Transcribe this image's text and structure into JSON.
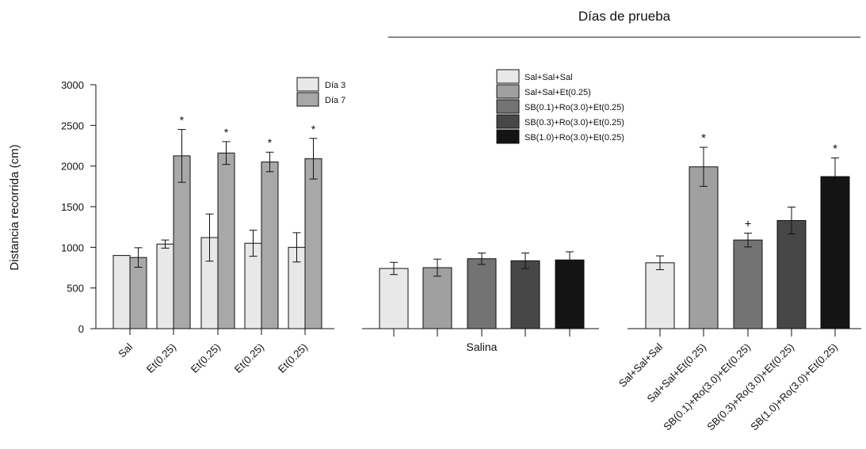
{
  "figure": {
    "header_title": "Días de prueba",
    "ylabel": "Distancia recorrida (cm)"
  },
  "chart_data": [
    {
      "type": "bar",
      "ylabel": "Distancia recorrida (cm)",
      "ylim": [
        0,
        3000
      ],
      "yticks": [
        0,
        500,
        1000,
        1500,
        2000,
        2500,
        3000
      ],
      "categories": [
        "Sal",
        "Et(0.25)",
        "Et(0.25)",
        "Et(0.25)",
        "Et(0.25)"
      ],
      "legend": {
        "position": "top-right",
        "entries": [
          "Día 3",
          "Día 7"
        ]
      },
      "series": [
        {
          "name": "Día 3",
          "color": "#e8e8e8",
          "values": [
            900,
            1040,
            1120,
            1050,
            1000
          ],
          "errors": [
            0,
            50,
            290,
            160,
            180
          ]
        },
        {
          "name": "Día 7",
          "color": "#a8a8a8",
          "values": [
            875,
            2125,
            2160,
            2050,
            2090
          ],
          "errors": [
            120,
            325,
            140,
            120,
            250
          ]
        }
      ],
      "annotations": [
        {
          "series": 1,
          "index": 1,
          "text": "*"
        },
        {
          "series": 1,
          "index": 2,
          "text": "*"
        },
        {
          "series": 1,
          "index": 3,
          "text": "*"
        },
        {
          "series": 1,
          "index": 4,
          "text": "*"
        }
      ]
    },
    {
      "type": "bar",
      "xlabel": "Salina",
      "ylim": [
        0,
        3000
      ],
      "categories": [
        "Sal+Sal+Sal",
        "Sal+Sal+Et(0.25)",
        "SB(0.1)+Ro(3.0)+Et(0.25)",
        "SB(0.3)+Ro(3.0)+Et(0.25)",
        "SB(1.0)+Ro(3.0)+Et(0.25)"
      ],
      "colors": [
        "#e8e8e8",
        "#a0a0a0",
        "#737373",
        "#474747",
        "#141414"
      ],
      "values": [
        740,
        750,
        860,
        835,
        845
      ],
      "errors": [
        75,
        105,
        70,
        95,
        100
      ],
      "legend": {
        "position": "top-right",
        "entries": [
          "Sal+Sal+Sal",
          "Sal+Sal+Et(0.25)",
          "SB(0.1)+Ro(3.0)+Et(0.25)",
          "SB(0.3)+Ro(3.0)+Et(0.25)",
          "SB(1.0)+Ro(3.0)+Et(0.25)"
        ]
      }
    },
    {
      "type": "bar",
      "ylim": [
        0,
        3000
      ],
      "categories": [
        "Sal+Sal+Sal",
        "Sal+Sal+Et(0.25)",
        "SB(0.1)+Ro(3.0)+Et(0.25)",
        "SB(0.3)+Ro(3.0)+Et(0.25)",
        "SB(1.0)+Ro(3.0)+Et(0.25)"
      ],
      "colors": [
        "#e8e8e8",
        "#a0a0a0",
        "#737373",
        "#474747",
        "#141414"
      ],
      "values": [
        810,
        1990,
        1090,
        1330,
        1870
      ],
      "errors": [
        85,
        240,
        85,
        165,
        230
      ],
      "annotations": [
        {
          "index": 1,
          "text": "*"
        },
        {
          "index": 2,
          "text": "+"
        },
        {
          "index": 4,
          "text": "*"
        }
      ]
    }
  ]
}
